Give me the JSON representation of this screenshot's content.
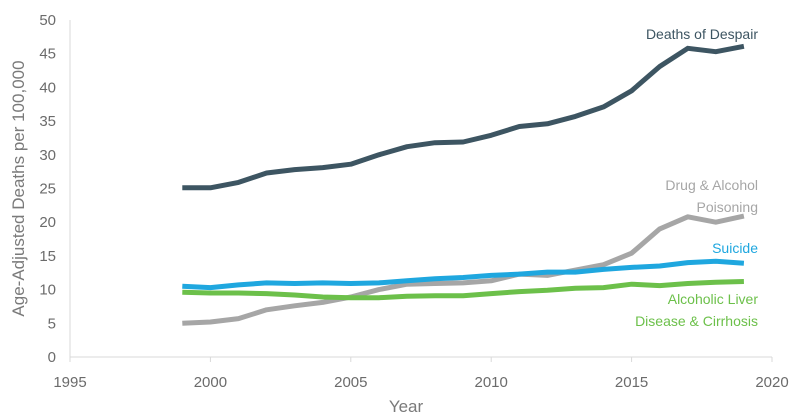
{
  "chart_data": {
    "type": "line",
    "title": "",
    "xlabel": "Year",
    "ylabel": "Age-Adjusted Deaths per 100,000",
    "xlim": [
      1995,
      2020
    ],
    "ylim": [
      0,
      50
    ],
    "xticks": [
      1995,
      2000,
      2005,
      2010,
      2015,
      2020
    ],
    "yticks": [
      0,
      5,
      10,
      15,
      20,
      25,
      30,
      35,
      40,
      45,
      50
    ],
    "grid": false,
    "legend": "inline labels",
    "x": [
      1999,
      2000,
      2001,
      2002,
      2003,
      2004,
      2005,
      2006,
      2007,
      2008,
      2009,
      2010,
      2011,
      2012,
      2013,
      2014,
      2015,
      2016,
      2017,
      2018,
      2019
    ],
    "series": [
      {
        "name": "Deaths of Despair",
        "label_lines": [
          "Deaths of Despair"
        ],
        "color": "#3d5562",
        "values": [
          25.1,
          25.1,
          25.9,
          27.3,
          27.8,
          28.1,
          28.6,
          30.0,
          31.2,
          31.8,
          31.9,
          32.9,
          34.2,
          34.6,
          35.7,
          37.1,
          39.5,
          43.1,
          45.8,
          45.3,
          46.1
        ]
      },
      {
        "name": "Drug & Alcohol Poisoning",
        "label_lines": [
          "Drug & Alcohol",
          "Poisoning"
        ],
        "color": "#a6a6a6",
        "values": [
          5.0,
          5.2,
          5.7,
          7.0,
          7.6,
          8.1,
          8.9,
          10.0,
          10.8,
          10.9,
          11.0,
          11.3,
          12.3,
          12.1,
          12.9,
          13.7,
          15.4,
          19.0,
          20.8,
          20.0,
          20.9
        ]
      },
      {
        "name": "Suicide",
        "label_lines": [
          "Suicide"
        ],
        "color": "#1fa7df",
        "values": [
          10.5,
          10.3,
          10.7,
          11.0,
          10.9,
          11.0,
          10.9,
          11.0,
          11.3,
          11.6,
          11.8,
          12.1,
          12.3,
          12.6,
          12.6,
          13.0,
          13.3,
          13.5,
          14.0,
          14.2,
          13.9
        ]
      },
      {
        "name": "Alcoholic Liver Disease & Cirrhosis",
        "label_lines": [
          "Alcoholic Liver",
          "Disease & Cirrhosis"
        ],
        "color": "#6cc04a",
        "values": [
          9.6,
          9.5,
          9.5,
          9.4,
          9.2,
          8.9,
          8.8,
          8.8,
          9.0,
          9.1,
          9.1,
          9.4,
          9.7,
          9.9,
          10.2,
          10.3,
          10.8,
          10.6,
          10.9,
          11.1,
          11.2
        ]
      }
    ]
  }
}
